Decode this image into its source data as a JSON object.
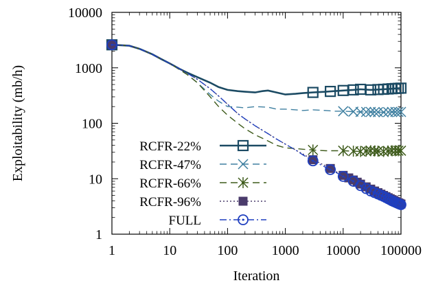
{
  "chart_data": {
    "type": "line",
    "title": "",
    "xlabel": "Iteration",
    "ylabel": "Exploitability (mb/h)",
    "xscale": "log",
    "yscale": "log",
    "xlim": [
      1,
      100000
    ],
    "ylim": [
      1,
      10000
    ],
    "x_ticks": [
      "1",
      "10",
      "100",
      "1000",
      "10000",
      "100000"
    ],
    "y_ticks": [
      "1",
      "10",
      "100",
      "1000",
      "10000"
    ],
    "grid": false,
    "legend_position": "bottom-left",
    "series": [
      {
        "name": "RCFR-22%",
        "color": "#1b4a63",
        "dash": "solid",
        "marker": "square-open",
        "points": [
          [
            1,
            2600
          ],
          [
            2,
            2500
          ],
          [
            3,
            2200
          ],
          [
            5,
            1750
          ],
          [
            7,
            1450
          ],
          [
            10,
            1200
          ],
          [
            15,
            950
          ],
          [
            20,
            820
          ],
          [
            30,
            680
          ],
          [
            50,
            540
          ],
          [
            70,
            450
          ],
          [
            100,
            400
          ],
          [
            150,
            380
          ],
          [
            200,
            370
          ],
          [
            300,
            360
          ],
          [
            400,
            380
          ],
          [
            500,
            390
          ],
          [
            700,
            360
          ],
          [
            1000,
            330
          ],
          [
            1500,
            340
          ],
          [
            2000,
            350
          ],
          [
            3000,
            360
          ],
          [
            5000,
            370
          ],
          [
            7000,
            380
          ],
          [
            10000,
            390
          ],
          [
            15000,
            400
          ],
          [
            20000,
            410
          ],
          [
            30000,
            400
          ],
          [
            50000,
            410
          ],
          [
            70000,
            420
          ],
          [
            100000,
            430
          ]
        ],
        "marker_x": [
          1,
          3000,
          6000,
          10000,
          15000,
          20000,
          30000,
          40000,
          50000,
          60000,
          70000,
          80000,
          90000,
          100000
        ]
      },
      {
        "name": "RCFR-47%",
        "color": "#3e7fa0",
        "dash": "dashed",
        "marker": "x",
        "points": [
          [
            1,
            2600
          ],
          [
            2,
            2500
          ],
          [
            3,
            2200
          ],
          [
            5,
            1750
          ],
          [
            7,
            1450
          ],
          [
            10,
            1200
          ],
          [
            15,
            920
          ],
          [
            20,
            760
          ],
          [
            30,
            540
          ],
          [
            50,
            330
          ],
          [
            70,
            250
          ],
          [
            100,
            200
          ],
          [
            150,
            195
          ],
          [
            200,
            190
          ],
          [
            300,
            200
          ],
          [
            500,
            195
          ],
          [
            700,
            180
          ],
          [
            1000,
            180
          ],
          [
            1500,
            175
          ],
          [
            2000,
            170
          ],
          [
            3000,
            175
          ],
          [
            5000,
            170
          ],
          [
            7000,
            165
          ],
          [
            10000,
            165
          ],
          [
            20000,
            160
          ],
          [
            30000,
            160
          ],
          [
            50000,
            158
          ],
          [
            70000,
            160
          ],
          [
            100000,
            160
          ]
        ],
        "marker_x": [
          10000,
          15000,
          20000,
          25000,
          30000,
          35000,
          40000,
          50000,
          60000,
          70000,
          80000,
          90000,
          100000
        ]
      },
      {
        "name": "RCFR-66%",
        "color": "#3d5a1a",
        "dash": "dashed",
        "marker": "asterisk",
        "points": [
          [
            1,
            2600
          ],
          [
            2,
            2500
          ],
          [
            3,
            2200
          ],
          [
            5,
            1750
          ],
          [
            7,
            1450
          ],
          [
            10,
            1200
          ],
          [
            15,
            920
          ],
          [
            20,
            760
          ],
          [
            30,
            540
          ],
          [
            50,
            300
          ],
          [
            70,
            200
          ],
          [
            100,
            140
          ],
          [
            150,
            100
          ],
          [
            200,
            80
          ],
          [
            300,
            62
          ],
          [
            500,
            48
          ],
          [
            700,
            40
          ],
          [
            1000,
            36
          ],
          [
            1500,
            35
          ],
          [
            2000,
            34
          ],
          [
            3000,
            33
          ],
          [
            5000,
            32
          ],
          [
            7000,
            32
          ],
          [
            10000,
            32
          ],
          [
            20000,
            31
          ],
          [
            30000,
            32
          ],
          [
            50000,
            31
          ],
          [
            70000,
            32
          ],
          [
            100000,
            32
          ]
        ],
        "marker_x": [
          3000,
          10000,
          15000,
          20000,
          25000,
          30000,
          35000,
          40000,
          50000,
          60000,
          70000,
          80000,
          90000,
          100000
        ]
      },
      {
        "name": "RCFR-96%",
        "color": "#4a3b6b",
        "dash": "dotted",
        "marker": "square-filled",
        "points": [
          [
            1,
            2600
          ],
          [
            2,
            2500
          ],
          [
            3,
            2200
          ],
          [
            5,
            1750
          ],
          [
            7,
            1450
          ],
          [
            10,
            1200
          ],
          [
            15,
            950
          ],
          [
            20,
            800
          ],
          [
            30,
            620
          ],
          [
            50,
            420
          ],
          [
            70,
            310
          ],
          [
            100,
            220
          ],
          [
            150,
            150
          ],
          [
            200,
            120
          ],
          [
            300,
            90
          ],
          [
            500,
            65
          ],
          [
            700,
            52
          ],
          [
            1000,
            42
          ],
          [
            1500,
            33
          ],
          [
            2000,
            28
          ],
          [
            3000,
            22
          ],
          [
            5000,
            17
          ],
          [
            7000,
            14
          ],
          [
            10000,
            11.5
          ],
          [
            15000,
            9.5
          ],
          [
            20000,
            8
          ],
          [
            30000,
            6.5
          ],
          [
            50000,
            5
          ],
          [
            70000,
            4.2
          ],
          [
            100000,
            3.5
          ]
        ],
        "marker_x": [
          1,
          3000,
          6000,
          10000,
          12500,
          15000,
          17500,
          20000,
          25000,
          30000,
          35000,
          40000,
          45000,
          50000,
          55000,
          60000,
          65000,
          70000,
          75000,
          80000,
          85000,
          90000,
          95000,
          100000
        ]
      },
      {
        "name": "FULL",
        "color": "#1f3fbf",
        "dash": "dashdot",
        "marker": "circle-dot",
        "points": [
          [
            1,
            2600
          ],
          [
            2,
            2500
          ],
          [
            3,
            2200
          ],
          [
            5,
            1750
          ],
          [
            7,
            1450
          ],
          [
            10,
            1200
          ],
          [
            15,
            950
          ],
          [
            20,
            800
          ],
          [
            30,
            620
          ],
          [
            50,
            420
          ],
          [
            70,
            310
          ],
          [
            100,
            220
          ],
          [
            150,
            150
          ],
          [
            200,
            120
          ],
          [
            300,
            90
          ],
          [
            500,
            65
          ],
          [
            700,
            52
          ],
          [
            1000,
            42
          ],
          [
            1500,
            33
          ],
          [
            2000,
            27
          ],
          [
            3000,
            21
          ],
          [
            5000,
            16
          ],
          [
            7000,
            13.5
          ],
          [
            10000,
            11
          ],
          [
            15000,
            9
          ],
          [
            20000,
            7.5
          ],
          [
            30000,
            6
          ],
          [
            50000,
            4.8
          ],
          [
            70000,
            4
          ],
          [
            100000,
            3.4
          ]
        ],
        "marker_x": [
          1,
          3000,
          6000,
          10000,
          15000,
          20000,
          25000,
          30000,
          35000,
          40000,
          45000,
          50000,
          55000,
          60000,
          65000,
          70000,
          75000,
          80000,
          85000,
          90000,
          95000,
          100000
        ]
      }
    ]
  }
}
